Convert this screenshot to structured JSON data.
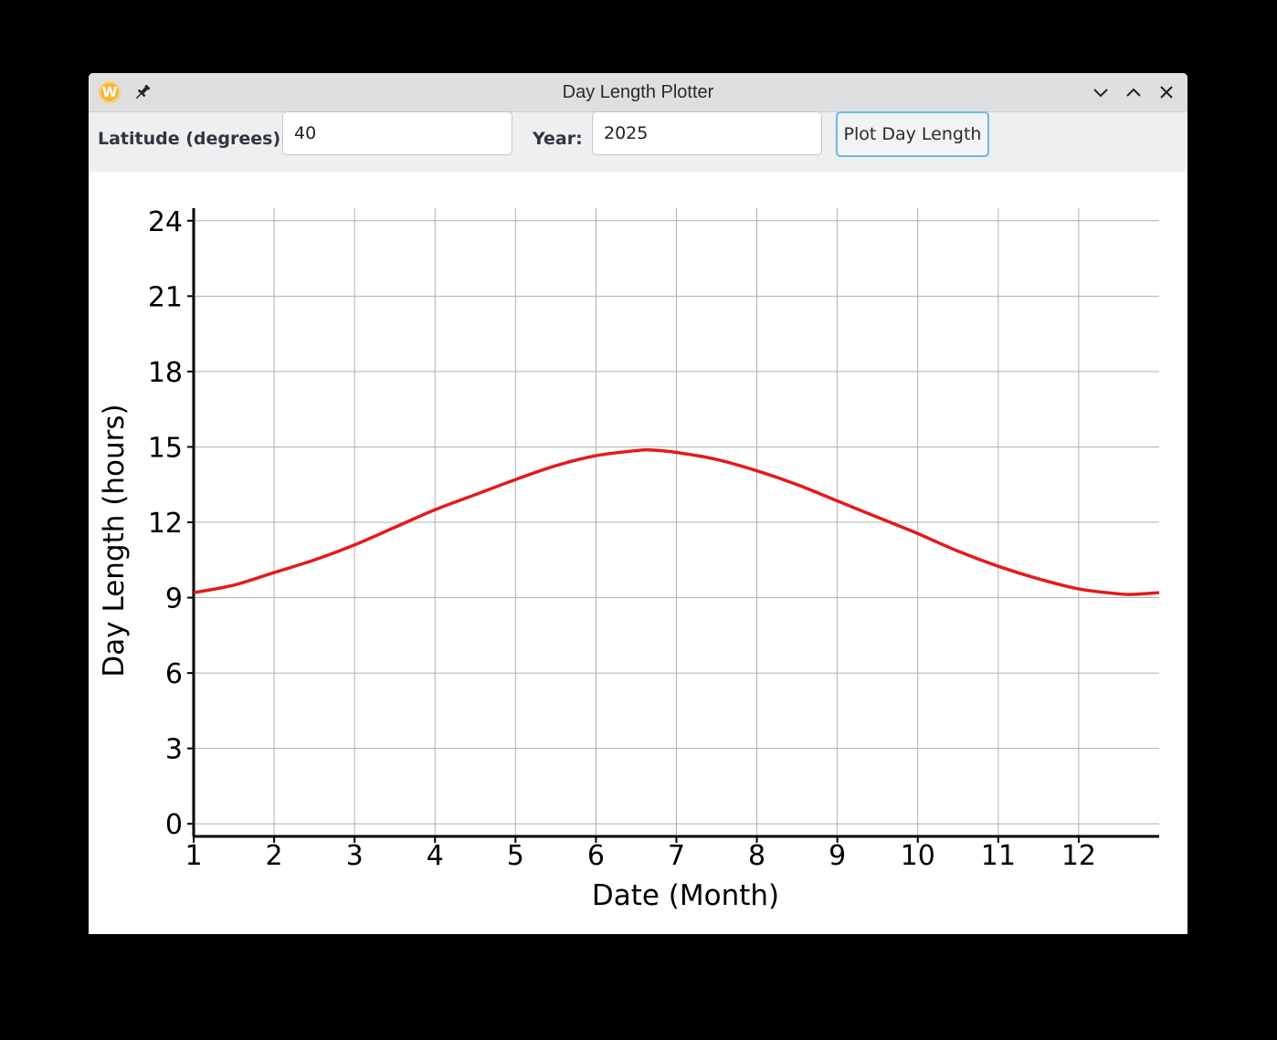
{
  "window": {
    "title": "Day Length Plotter",
    "icons": {
      "app": "app-w-icon",
      "pin": "pin-icon",
      "minimize": "chevron-down-icon",
      "maximize": "chevron-up-icon",
      "close": "close-icon"
    },
    "app_icon_letter": "W"
  },
  "controls": {
    "latitude_label": "Latitude (degrees):",
    "latitude_value": "40",
    "year_label": "Year:",
    "year_value": "2025",
    "plot_button_label": "Plot Day Length"
  },
  "colors": {
    "accent": "#6cb9e4",
    "series": "#e31a1c",
    "grid": "#b0b0b0",
    "app_icon": "#f6b73c"
  },
  "chart_data": {
    "type": "line",
    "title": "",
    "xlabel": "Date (Month)",
    "ylabel": "Day Length (hours)",
    "xlim": [
      1,
      13
    ],
    "ylim": [
      -0.5,
      24.5
    ],
    "x_ticks": [
      1,
      2,
      3,
      4,
      5,
      6,
      7,
      8,
      9,
      10,
      11,
      12
    ],
    "y_ticks": [
      0,
      3,
      6,
      9,
      12,
      15,
      18,
      21,
      24
    ],
    "grid": true,
    "legend": "none",
    "series": [
      {
        "color": "#e31a1c",
        "x": [
          1.0,
          1.5,
          2.0,
          2.5,
          3.0,
          3.5,
          4.0,
          4.5,
          5.0,
          5.5,
          6.0,
          6.5,
          6.67,
          7.0,
          7.5,
          8.0,
          8.5,
          9.0,
          9.5,
          10.0,
          10.5,
          11.0,
          11.5,
          12.0,
          12.5,
          12.67,
          13.0
        ],
        "values": [
          9.2,
          9.5,
          10.0,
          10.5,
          11.1,
          11.8,
          12.5,
          13.1,
          13.7,
          14.25,
          14.65,
          14.85,
          14.88,
          14.78,
          14.5,
          14.05,
          13.5,
          12.85,
          12.2,
          11.55,
          10.85,
          10.25,
          9.75,
          9.35,
          9.15,
          9.13,
          9.2
        ]
      }
    ]
  }
}
